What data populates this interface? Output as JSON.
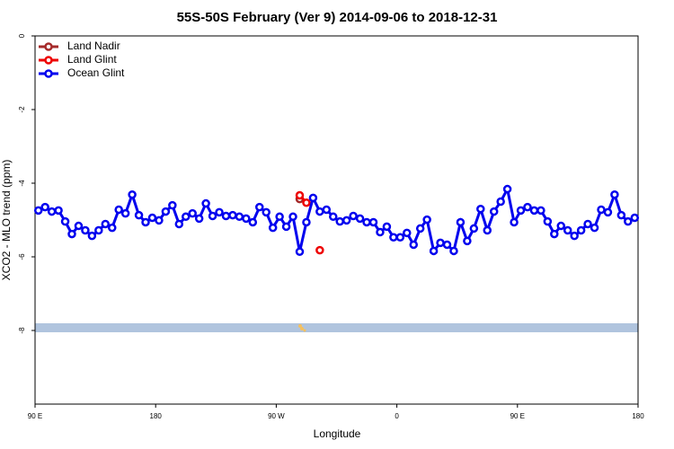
{
  "chart_data": {
    "type": "line",
    "title": "55S-50S February (Ver 9)   2014-09-06 to 2018-12-31",
    "x_label": "Longitude",
    "y_label": "XCO2 - MLO trend (ppm)",
    "xlim": [
      90,
      540
    ],
    "ylim": [
      -10,
      0
    ],
    "xticks": [
      {
        "value": 90,
        "label": "90 E"
      },
      180,
      {
        "value": 270,
        "label": "90 W"
      },
      {
        "value": 360,
        "label": "0"
      },
      {
        "value": 450,
        "label": "90 E"
      },
      {
        "value": 540,
        "label": "180"
      }
    ],
    "yticks": [
      0,
      -2,
      -4,
      -6,
      -8
    ],
    "legend": "top-left",
    "series": [
      {
        "name": "Land Nadir",
        "color": "#a52a2a",
        "x": [
          287.5
        ],
        "values": [
          -4.43
        ]
      },
      {
        "name": "Land Glint",
        "color": "#ee0000",
        "x": [
          287.5,
          292.5,
          297.5,
          302.5
        ],
        "values": [
          -4.33,
          -4.53,
          null,
          -5.82
        ]
      },
      {
        "name": "Ocean Glint",
        "color": "#0000ee",
        "x": [
          92.5,
          97.5,
          102.5,
          107.5,
          112.5,
          117.5,
          122.5,
          127.5,
          132.5,
          137.5,
          142.5,
          147.5,
          152.5,
          157.5,
          162.5,
          167.5,
          172.5,
          177.5,
          182.5,
          187.5,
          192.5,
          197.5,
          202.5,
          207.5,
          212.5,
          217.5,
          222.5,
          227.5,
          232.5,
          237.5,
          242.5,
          247.5,
          252.5,
          257.5,
          262.5,
          267.5,
          272.5,
          277.5,
          282.5,
          287.5,
          292.5,
          297.5,
          302.5,
          307.5,
          312.5,
          317.5,
          322.5,
          327.5,
          332.5,
          337.5,
          342.5,
          347.5,
          352.5,
          357.5,
          362.5,
          367.5,
          372.5,
          377.5,
          382.5,
          387.5,
          392.5,
          397.5,
          402.5,
          407.5,
          412.5,
          417.5,
          422.5,
          427.5,
          432.5,
          437.5,
          442.5,
          447.5,
          452.5,
          457.5,
          462.5,
          467.5,
          472.5,
          477.5,
          482.5,
          487.5,
          492.5,
          497.5,
          502.5,
          507.5,
          512.5,
          517.5,
          522.5,
          527.5,
          532.5,
          537.5
        ],
        "values": [
          -4.74,
          -4.65,
          -4.77,
          -4.74,
          -5.04,
          -5.38,
          -5.16,
          -5.28,
          -5.43,
          -5.28,
          -5.11,
          -5.21,
          -4.72,
          -4.82,
          -4.31,
          -4.87,
          -5.06,
          -4.94,
          -5.01,
          -4.77,
          -4.6,
          -5.11,
          -4.91,
          -4.82,
          -4.96,
          -4.55,
          -4.89,
          -4.79,
          -4.89,
          -4.87,
          -4.91,
          -4.96,
          -5.06,
          -4.65,
          -4.79,
          -5.21,
          -4.91,
          -5.18,
          -4.91,
          -5.86,
          -5.06,
          -4.4,
          -4.77,
          -4.72,
          -4.91,
          -5.04,
          -5.01,
          -4.89,
          -4.96,
          -5.06,
          -5.06,
          -5.33,
          -5.18,
          -5.47,
          -5.47,
          -5.35,
          -5.67,
          -5.23,
          -4.99,
          -5.84,
          -5.62,
          -5.67,
          -5.84,
          -5.06,
          -5.57,
          -5.23,
          -4.7,
          -5.28,
          -4.77,
          -4.5,
          -4.16,
          -5.06,
          -4.74,
          -4.65,
          -4.74,
          -4.74,
          -5.04,
          -5.38,
          -5.16,
          -5.28,
          -5.43,
          -5.28,
          -5.11,
          -5.21,
          -4.72,
          -4.79,
          -4.31,
          -4.87,
          -5.04,
          -4.94
        ]
      }
    ]
  }
}
